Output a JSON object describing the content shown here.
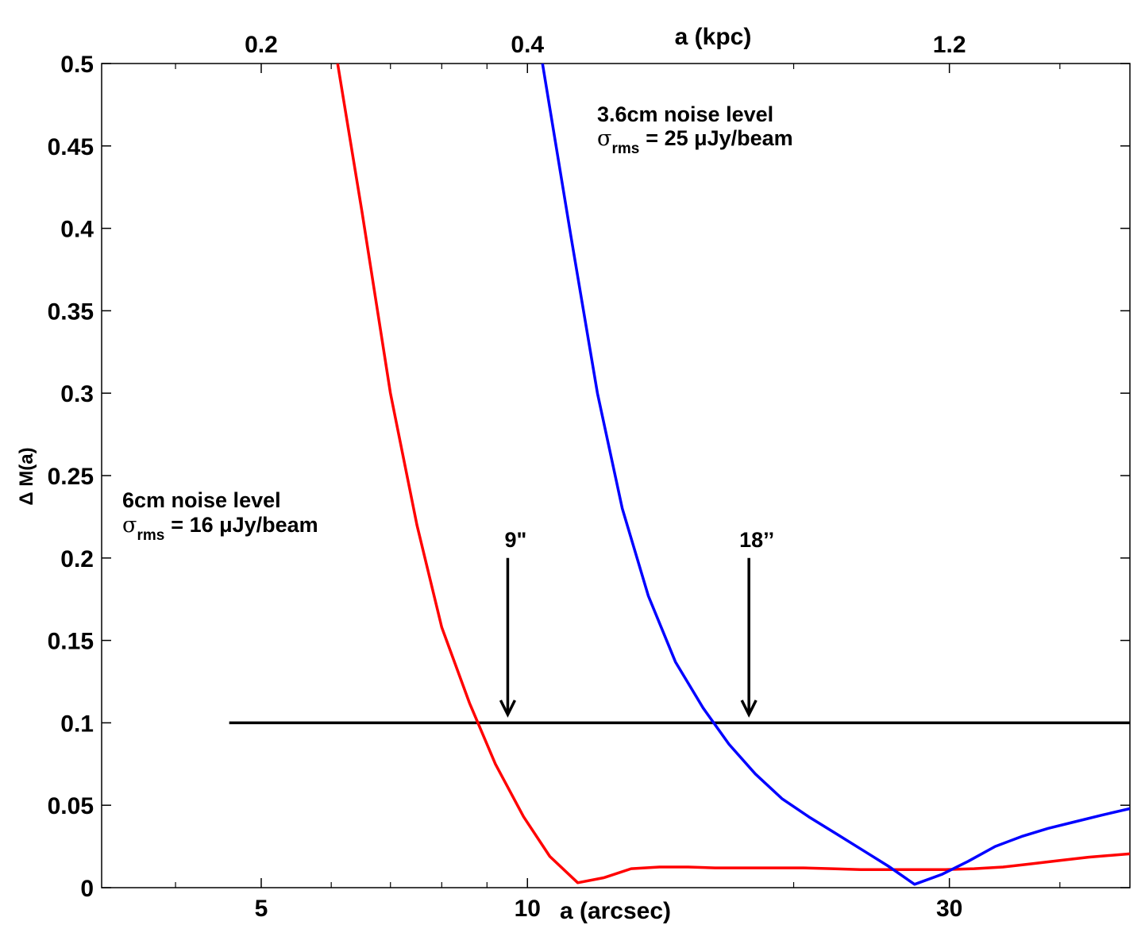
{
  "chart_data": {
    "type": "line",
    "title": "",
    "xlabel": "a (arcsec)",
    "ylabel": "Δ M(a)",
    "top_xlabel": "a (kpc)",
    "xscale": "log",
    "xlim": [
      3.3,
      48
    ],
    "ylim": [
      0,
      0.5
    ],
    "grid": false,
    "x_ticks": [
      {
        "value": 5,
        "label": "5"
      },
      {
        "value": 10,
        "label": "10"
      },
      {
        "value": 30,
        "label": "30"
      }
    ],
    "x_minor_ticks": [
      4,
      6,
      7,
      8,
      9,
      20,
      40
    ],
    "top_ticks": [
      {
        "value": 5,
        "label": "0.2"
      },
      {
        "value": 10,
        "label": "0.4"
      },
      {
        "value": 30,
        "label": "1.2"
      }
    ],
    "y_ticks": [
      {
        "value": 0,
        "label": "0"
      },
      {
        "value": 0.05,
        "label": "0.05"
      },
      {
        "value": 0.1,
        "label": "0.1"
      },
      {
        "value": 0.15,
        "label": "0.15"
      },
      {
        "value": 0.2,
        "label": "0.2"
      },
      {
        "value": 0.25,
        "label": "0.25"
      },
      {
        "value": 0.3,
        "label": "0.3"
      },
      {
        "value": 0.35,
        "label": "0.35"
      },
      {
        "value": 0.4,
        "label": "0.4"
      },
      {
        "value": 0.45,
        "label": "0.45"
      },
      {
        "value": 0.5,
        "label": "0.5"
      }
    ],
    "series": [
      {
        "name": "6cm",
        "color": "#ff0000",
        "x": [
          6.1,
          6.5,
          7.0,
          7.5,
          8.0,
          8.6,
          9.2,
          9.9,
          10.6,
          11.4,
          12.2,
          13.1,
          14.1,
          15.2,
          16.3,
          17.6,
          19.0,
          20.5,
          22.1,
          23.8,
          25.6,
          27.6,
          29.7,
          32.0,
          34.5,
          37.2,
          40.0,
          43.1,
          48.0
        ],
        "values": [
          0.5,
          0.41,
          0.3,
          0.22,
          0.158,
          0.112,
          0.075,
          0.043,
          0.019,
          0.003,
          0.006,
          0.0115,
          0.0125,
          0.0125,
          0.012,
          0.012,
          0.012,
          0.012,
          0.0115,
          0.011,
          0.011,
          0.011,
          0.011,
          0.0115,
          0.0125,
          0.0145,
          0.0165,
          0.0185,
          0.0205
        ]
      },
      {
        "name": "3.6cm",
        "color": "#0000ff",
        "x": [
          10.4,
          11.2,
          12.0,
          12.8,
          13.7,
          14.7,
          15.8,
          16.9,
          18.1,
          19.4,
          20.8,
          22.3,
          23.9,
          25.6,
          27.4,
          29.4,
          31.5,
          33.8,
          36.2,
          38.8,
          41.6,
          44.6,
          48.0
        ],
        "values": [
          0.5,
          0.395,
          0.3,
          0.23,
          0.177,
          0.137,
          0.109,
          0.087,
          0.069,
          0.054,
          0.043,
          0.033,
          0.023,
          0.013,
          0.002,
          0.008,
          0.016,
          0.025,
          0.031,
          0.036,
          0.04,
          0.044,
          0.048
        ]
      }
    ],
    "threshold": {
      "value": 0.1,
      "x_from": 4.6,
      "x_to": 48.0,
      "color": "#000000"
    },
    "annotations": [
      {
        "label": "9\"",
        "x": 9.5,
        "y_from": 0.2,
        "y_to": 0.105
      },
      {
        "label": "18’’",
        "x": 17.8,
        "y_from": 0.2,
        "y_to": 0.105
      }
    ],
    "legend_text": {
      "c6_title": "6cm noise level",
      "c6_sigma": "σ",
      "c6_sub": "rms",
      "c6_value": "= 16 μJy/beam",
      "c36_title": "3.6cm noise level",
      "c36_sigma": "σ",
      "c36_sub": "rms",
      "c36_value": "= 25 μJy/beam"
    }
  }
}
